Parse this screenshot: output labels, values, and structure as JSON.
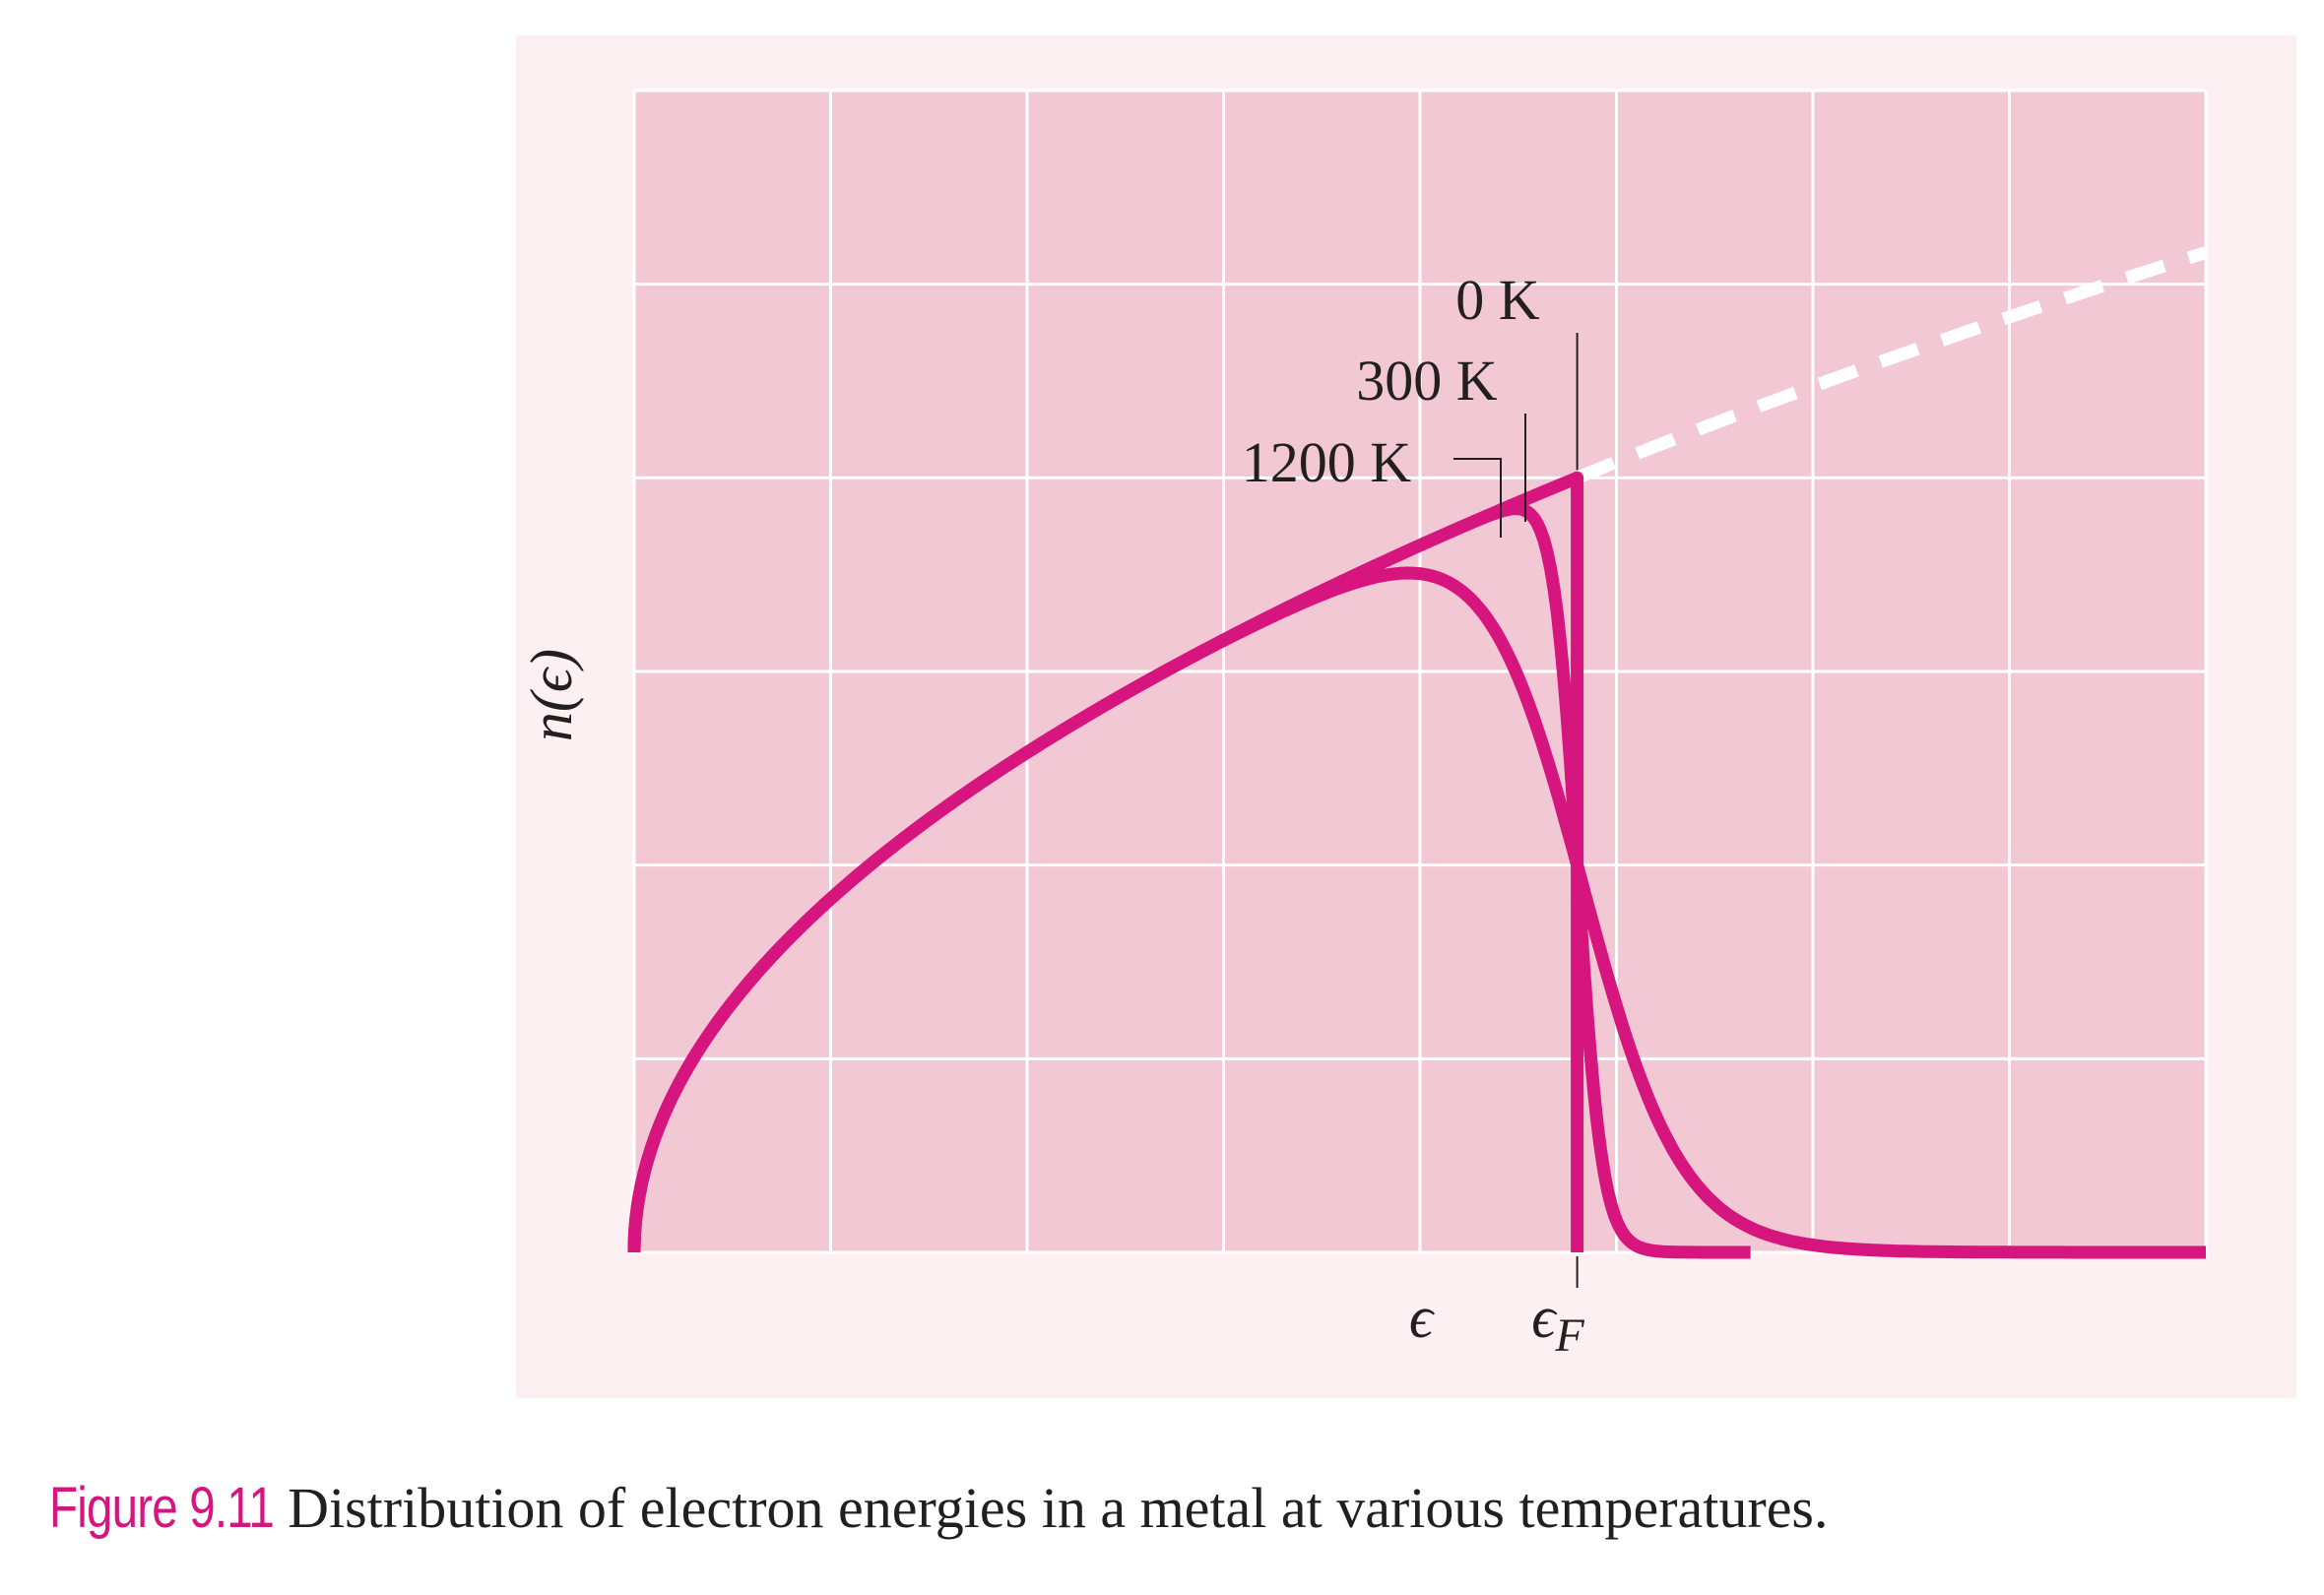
{
  "figure": {
    "number": "Figure 9.11",
    "caption": "Distribution of electron energies in a metal at various temperatures."
  },
  "colors": {
    "panel_background": "#fdf0f3",
    "plot_background": "#f3c8d5",
    "grid": "#ffffff",
    "curve": "#d6157e",
    "text": "#231f20",
    "dashed_extension": "#ffffff"
  },
  "chart_data": {
    "type": "line",
    "title": "",
    "xlabel": "ϵ",
    "ylabel": "n(ϵ)",
    "x_tick_labels": [
      "ϵ",
      "ϵF"
    ],
    "fermi_energy_label": "ϵF",
    "xlim": [
      0,
      8
    ],
    "ylim": [
      0,
      6
    ],
    "grid": true,
    "legend": "none",
    "fermi_energy": 4.8,
    "density_of_states": "n(ϵ) ∝ √ϵ",
    "dos_at_fermi": 4.0,
    "series": [
      {
        "name": "0 K",
        "temperature_K": 0,
        "x": [
          0,
          0.5,
          1,
          1.5,
          2,
          2.5,
          3,
          3.5,
          4,
          4.5,
          4.8,
          4.8
        ],
        "y": [
          0,
          1.29,
          1.83,
          2.24,
          2.58,
          2.89,
          3.16,
          3.42,
          3.65,
          3.87,
          4.0,
          0
        ]
      },
      {
        "name": "300 K",
        "temperature_K": 300,
        "x": [
          0,
          1,
          2,
          3,
          4,
          4.5,
          4.62,
          4.68,
          4.8,
          4.92,
          5.0,
          5.1
        ],
        "y": [
          0,
          1.83,
          2.58,
          3.16,
          3.65,
          3.87,
          3.9,
          3.7,
          2.0,
          0.3,
          0.08,
          0
        ]
      },
      {
        "name": "1200 K",
        "temperature_K": 1200,
        "x": [
          0,
          1,
          2,
          3,
          4,
          4.4,
          4.6,
          4.8,
          5.0,
          5.15,
          5.4
        ],
        "y": [
          0,
          1.83,
          2.58,
          3.16,
          3.65,
          3.78,
          3.55,
          2.0,
          0.45,
          0.15,
          0
        ]
      }
    ],
    "dashed_extension": {
      "x": [
        4.8,
        8
      ],
      "y": [
        4.0,
        5.16
      ]
    },
    "curve_labels": [
      "0 K",
      "300 K",
      "1200 K"
    ]
  }
}
